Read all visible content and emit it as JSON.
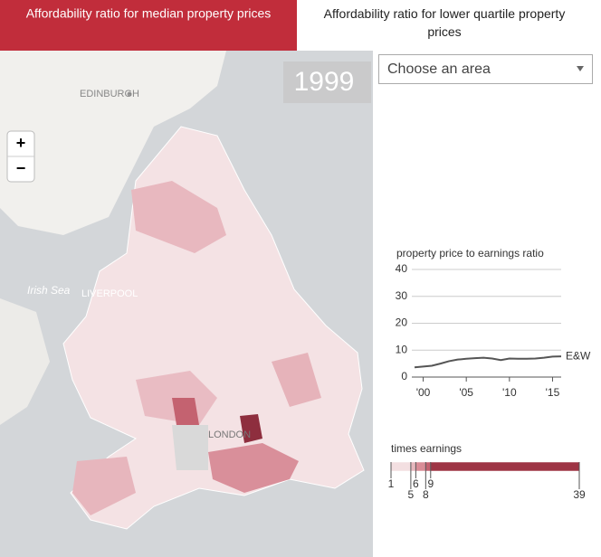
{
  "tabs": [
    "Affordability ratio for median property prices",
    "Affordability ratio for lower quartile property prices"
  ],
  "year": "1999",
  "dropdown": "Choose an area",
  "zoom": [
    "+",
    "−"
  ],
  "map_labels": [
    "EDINBURGH",
    "Irish Sea",
    "LIVERPOOL",
    "LONDON"
  ],
  "chart_data": {
    "type": "line",
    "title": "property price to earnings ratio",
    "x": [
      1999,
      2000,
      2001,
      2002,
      2003,
      2004,
      2005,
      2006,
      2007,
      2008,
      2009,
      2010,
      2011,
      2012,
      2013,
      2014,
      2015,
      2016
    ],
    "series": [
      {
        "name": "E&W",
        "color": "#555555",
        "values": [
          3.6,
          3.9,
          4.2,
          5.0,
          5.9,
          6.5,
          6.8,
          7.0,
          7.2,
          6.9,
          6.3,
          6.9,
          6.8,
          6.8,
          6.9,
          7.2,
          7.6,
          7.7
        ]
      }
    ],
    "xlim": [
      1999,
      2016
    ],
    "xticks": [
      {
        "value": 2000,
        "label": "'00"
      },
      {
        "value": 2005,
        "label": "'05"
      },
      {
        "value": 2010,
        "label": "'10"
      },
      {
        "value": 2015,
        "label": "'15"
      }
    ],
    "ylim": [
      0,
      40
    ],
    "yticks": [
      0,
      10,
      20,
      30,
      40
    ],
    "grid": true
  },
  "legend": {
    "title": "times earnings",
    "breaks": [
      1,
      5,
      6,
      8,
      9,
      39
    ],
    "colors": [
      "#f3dfe1",
      "#e7b7bd",
      "#d98d97",
      "#c46270",
      "#9e3545"
    ]
  }
}
